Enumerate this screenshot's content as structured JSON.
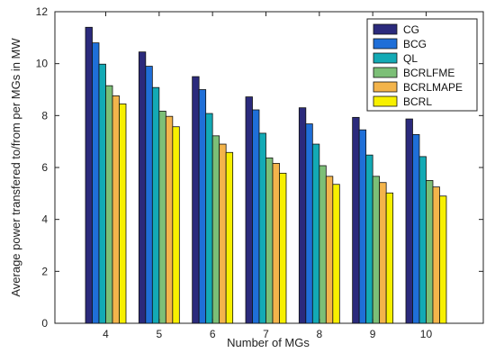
{
  "chart_data": {
    "type": "bar",
    "title": "",
    "xlabel": "Number of MGs",
    "ylabel": "Average power transfered to/from per MGs in MW",
    "categories": [
      "4",
      "5",
      "6",
      "7",
      "8",
      "9",
      "10"
    ],
    "ylim": [
      0,
      12
    ],
    "yticks": [
      "0",
      "2",
      "4",
      "6",
      "8",
      "10",
      "12"
    ],
    "grid": false,
    "legend_position": "top-right",
    "series": [
      {
        "name": "CG",
        "color": "#2b2a7c",
        "values": [
          11.4,
          10.45,
          9.5,
          8.72,
          8.3,
          7.93,
          7.87
        ]
      },
      {
        "name": "BCG",
        "color": "#1f6fd8",
        "values": [
          10.8,
          9.9,
          9.0,
          8.22,
          7.68,
          7.45,
          7.27
        ]
      },
      {
        "name": "QL",
        "color": "#13aab5",
        "values": [
          9.98,
          9.08,
          8.08,
          7.32,
          6.9,
          6.48,
          6.42
        ]
      },
      {
        "name": "BCRLFME",
        "color": "#7cbf77",
        "values": [
          9.15,
          8.17,
          7.22,
          6.37,
          6.07,
          5.66,
          5.5
        ]
      },
      {
        "name": "BCRLMAPE",
        "color": "#f3b44b",
        "values": [
          8.76,
          7.97,
          6.9,
          6.16,
          5.66,
          5.42,
          5.25
        ]
      },
      {
        "name": "BCRL",
        "color": "#f7f000",
        "values": [
          8.45,
          7.57,
          6.58,
          5.78,
          5.35,
          5.02,
          4.9
        ]
      }
    ]
  }
}
